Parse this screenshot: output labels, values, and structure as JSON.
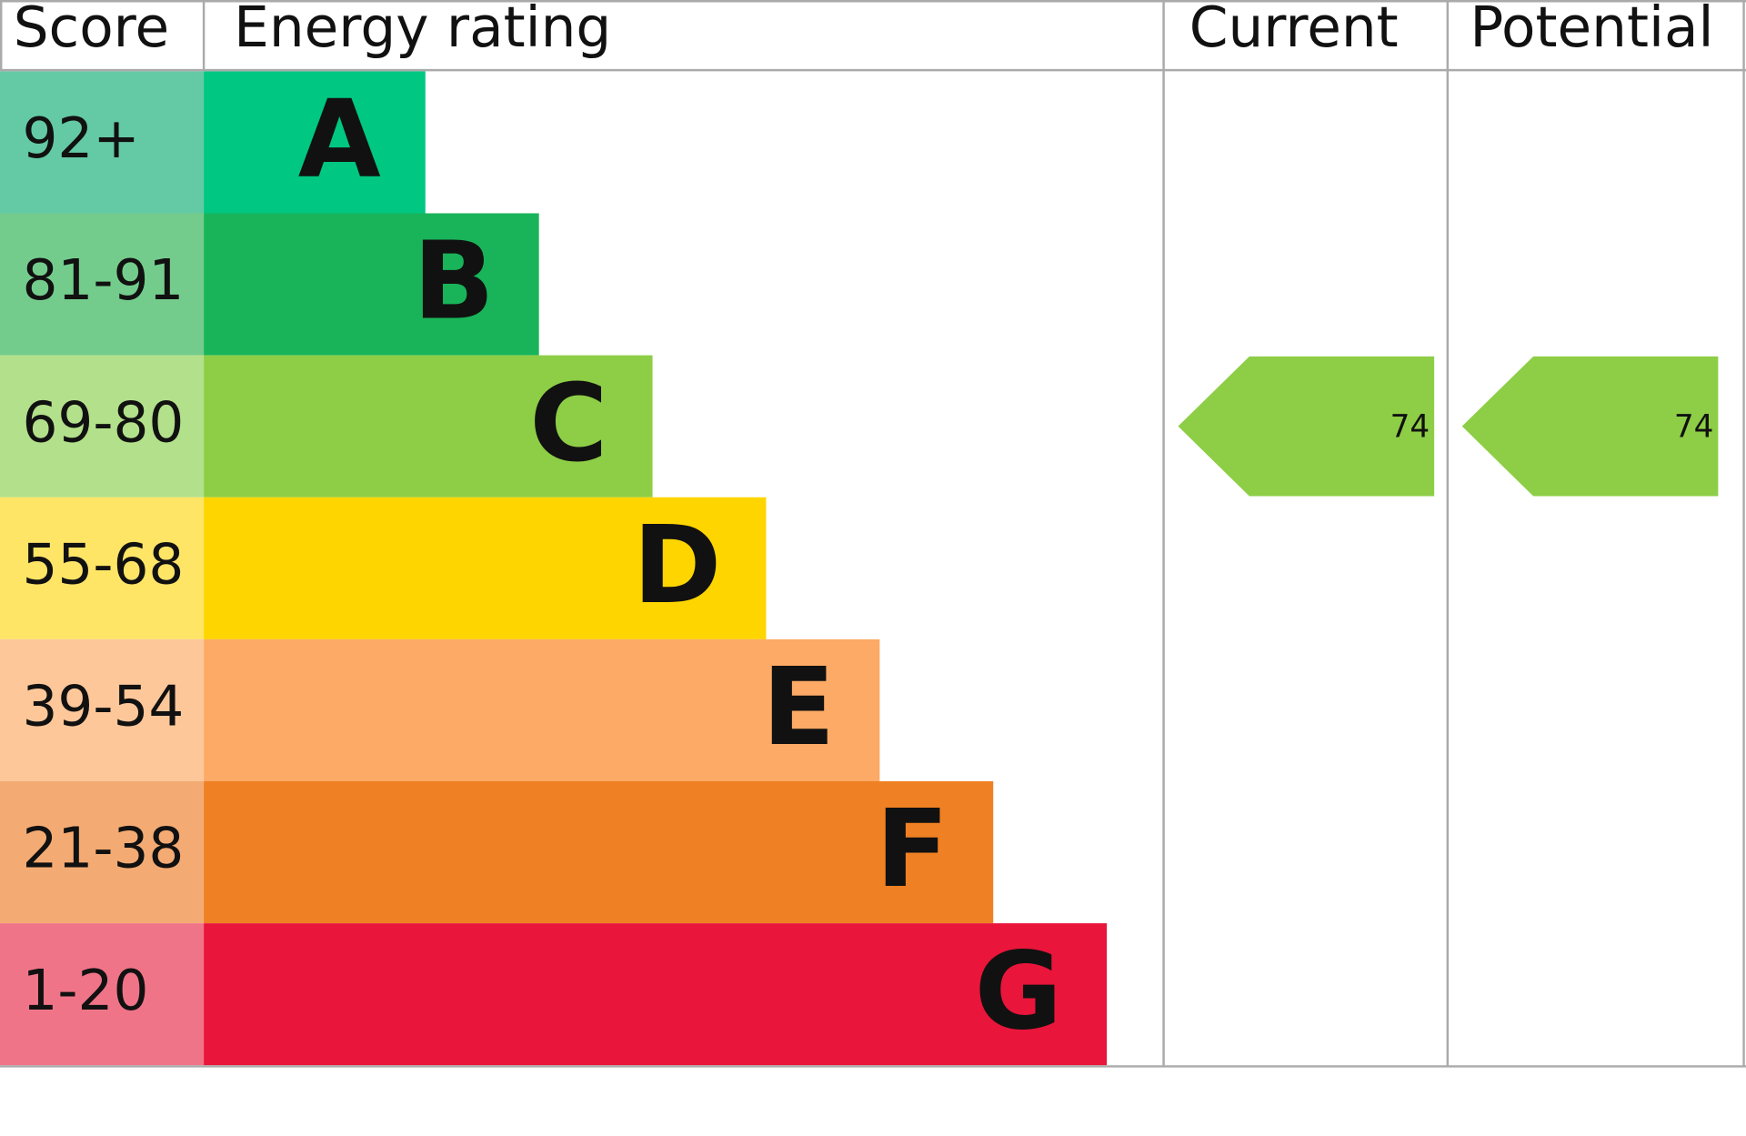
{
  "header": {
    "score": "Score",
    "rating": "Energy rating",
    "current": "Current",
    "potential": "Potential"
  },
  "rows": [
    {
      "score": "92+",
      "rating": "A",
      "color": "#00c781",
      "score_color": "#64c9a5"
    },
    {
      "score": "81-91",
      "rating": "B",
      "color": "#19b459",
      "score_color": "#74cc8c"
    },
    {
      "score": "69-80",
      "rating": "C",
      "color": "#8dce46",
      "score_color": "#b3e08a"
    },
    {
      "score": "55-68",
      "rating": "D",
      "color": "#ffd500",
      "score_color": "#ffe566"
    },
    {
      "score": "39-54",
      "rating": "E",
      "color": "#fcaa65",
      "score_color": "#fdc79a"
    },
    {
      "score": "21-38",
      "rating": "F",
      "color": "#ef8023",
      "score_color": "#f4ab73"
    },
    {
      "score": "1-20",
      "rating": "G",
      "color": "#e9153b",
      "score_color": "#f07488"
    }
  ],
  "current": {
    "value": 74
  },
  "potential": {
    "value": 74
  }
}
